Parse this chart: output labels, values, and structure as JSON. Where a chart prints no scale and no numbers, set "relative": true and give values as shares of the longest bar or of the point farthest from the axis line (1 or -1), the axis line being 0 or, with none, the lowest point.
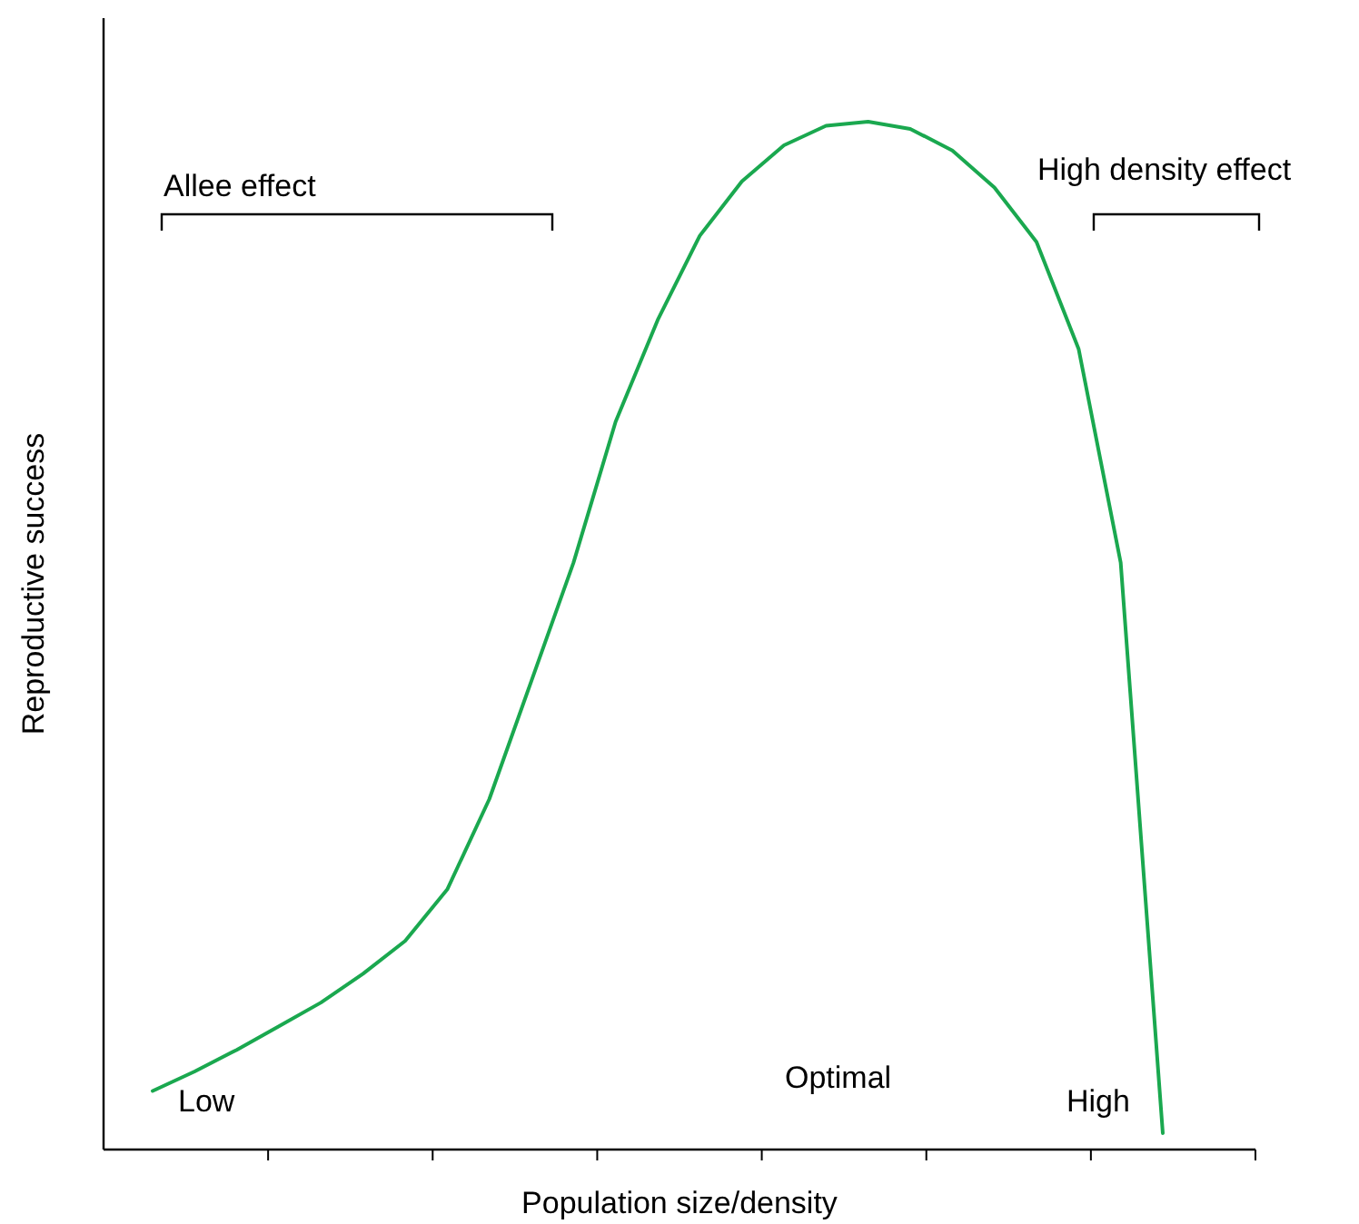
{
  "chart_data": {
    "type": "line",
    "relative": true,
    "xlabel": "Population size/density",
    "ylabel": "Reproductive success",
    "categories": [
      null,
      null,
      null,
      null,
      null,
      null,
      null,
      null,
      null,
      null,
      null,
      null,
      null,
      null,
      null,
      null,
      null,
      null,
      null,
      null,
      null,
      null,
      null,
      null,
      null
    ],
    "series": [
      {
        "color": "#1aa84f",
        "values": [
          0.057,
          0.076,
          0.097,
          0.12,
          0.143,
          0.171,
          0.203,
          0.253,
          0.341,
          0.456,
          0.571,
          0.708,
          0.807,
          0.889,
          0.942,
          0.977,
          0.996,
          1.0,
          0.993,
          0.972,
          0.936,
          0.883,
          0.779,
          0.571,
          0.016
        ]
      }
    ],
    "annotations": [
      "Allee effect",
      "High density effect",
      "Low",
      "Optimal",
      "High"
    ],
    "grid": false,
    "marker": "none",
    "line_style": "solid"
  }
}
